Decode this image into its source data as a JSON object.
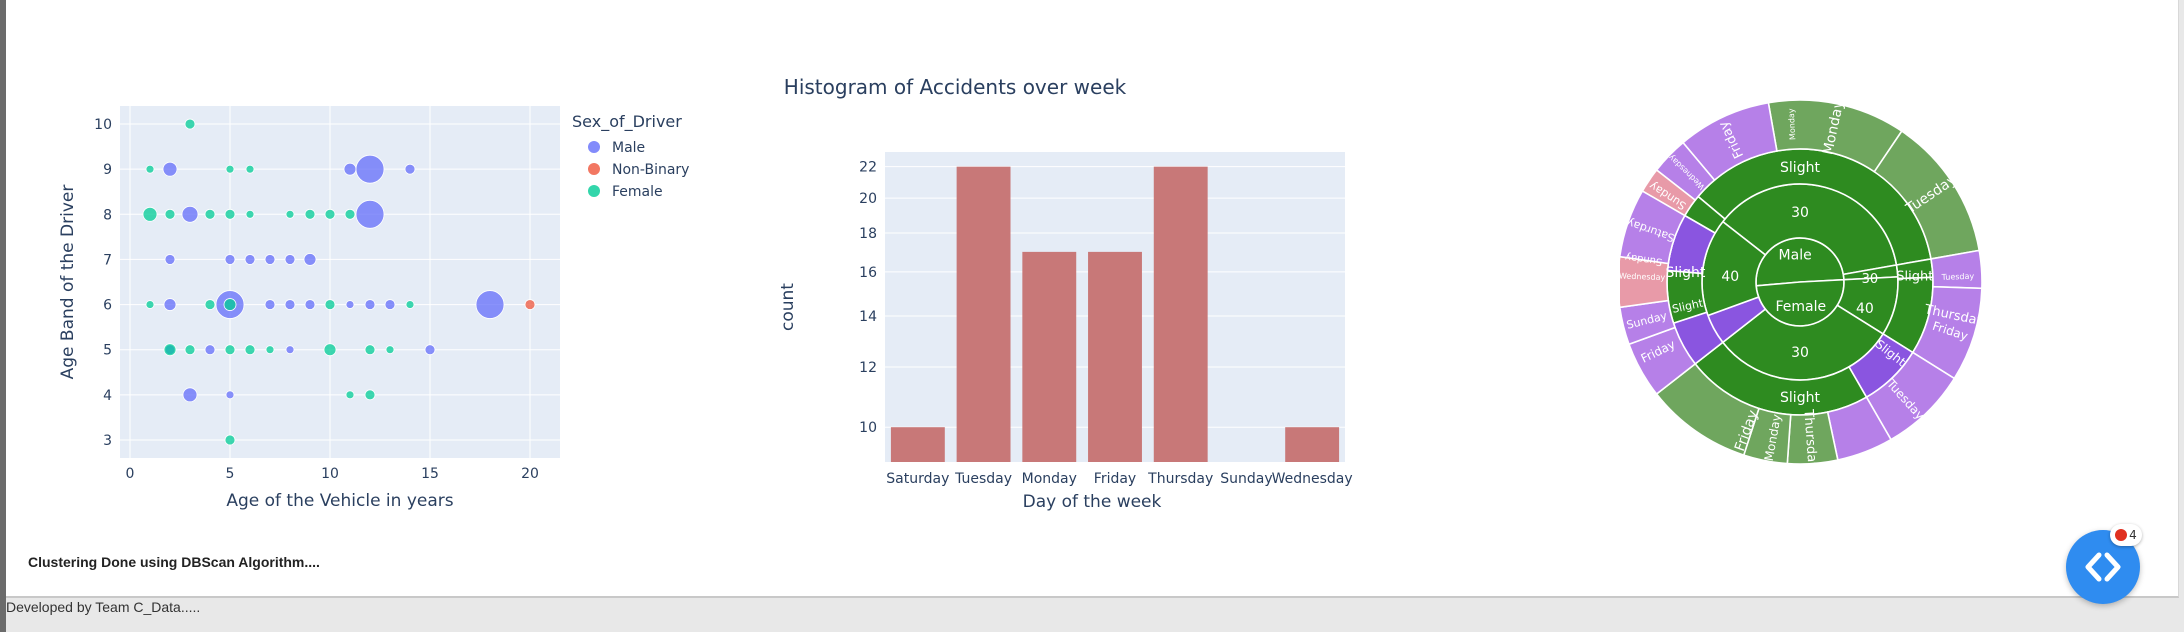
{
  "status_text": "Clustering Done using DBScan Algorithm....",
  "footer_text": "Developed by Team C_Data.....",
  "fab": {
    "badge_count": "4",
    "icon": "code-brackets-icon",
    "color": "#2f8cf0"
  },
  "chart_data": [
    {
      "type": "scatter",
      "title": "",
      "xlabel": "Age of the Vehicle in years",
      "ylabel": "Age Band of the Driver",
      "xlim": [
        -0.5,
        21.5
      ],
      "ylim": [
        2.6,
        10.4
      ],
      "x_ticks": [
        0,
        5,
        10,
        15,
        20
      ],
      "y_ticks": [
        3,
        4,
        5,
        6,
        7,
        8,
        9,
        10
      ],
      "grid": true,
      "legend": {
        "title": "Sex_of_Driver",
        "placement": "top-right-outside"
      },
      "series": [
        {
          "name": "Male",
          "color": "#636efa",
          "points": [
            [
              2,
              9,
              7
            ],
            [
              11,
              9,
              6
            ],
            [
              12,
              9,
              14
            ],
            [
              14,
              9,
              5
            ],
            [
              3,
              8,
              8
            ],
            [
              12,
              8,
              14
            ],
            [
              2,
              7,
              5
            ],
            [
              5,
              7,
              5
            ],
            [
              6,
              7,
              5
            ],
            [
              7,
              7,
              5
            ],
            [
              8,
              7,
              5
            ],
            [
              9,
              7,
              6
            ],
            [
              2,
              6,
              6
            ],
            [
              5,
              6,
              14
            ],
            [
              7,
              6,
              5
            ],
            [
              8,
              6,
              5
            ],
            [
              9,
              6,
              5
            ],
            [
              11,
              6,
              4
            ],
            [
              12,
              6,
              5
            ],
            [
              13,
              6,
              5
            ],
            [
              18,
              6,
              14
            ],
            [
              2,
              5,
              5
            ],
            [
              4,
              5,
              5
            ],
            [
              8,
              5,
              4
            ],
            [
              15,
              5,
              5
            ],
            [
              3,
              4,
              7
            ],
            [
              5,
              4,
              4
            ]
          ]
        },
        {
          "name": "Non-Binary",
          "color": "#ef553b",
          "points": [
            [
              20,
              6,
              5
            ]
          ]
        },
        {
          "name": "Female",
          "color": "#00cc96",
          "points": [
            [
              3,
              10,
              5
            ],
            [
              1,
              9,
              4
            ],
            [
              5,
              9,
              4
            ],
            [
              6,
              9,
              4
            ],
            [
              1,
              8,
              7
            ],
            [
              2,
              8,
              5
            ],
            [
              4,
              8,
              5
            ],
            [
              5,
              8,
              5
            ],
            [
              6,
              8,
              4
            ],
            [
              8,
              8,
              4
            ],
            [
              9,
              8,
              5
            ],
            [
              10,
              8,
              5
            ],
            [
              11,
              8,
              5
            ],
            [
              1,
              6,
              4
            ],
            [
              4,
              6,
              5
            ],
            [
              5,
              6,
              6
            ],
            [
              10,
              6,
              5
            ],
            [
              14,
              6,
              4
            ],
            [
              2,
              5,
              6
            ],
            [
              3,
              5,
              5
            ],
            [
              5,
              5,
              5
            ],
            [
              6,
              5,
              5
            ],
            [
              7,
              5,
              4
            ],
            [
              10,
              5,
              6
            ],
            [
              12,
              5,
              5
            ],
            [
              13,
              5,
              4
            ],
            [
              11,
              4,
              4
            ],
            [
              12,
              4,
              5
            ],
            [
              5,
              3,
              5
            ]
          ]
        }
      ]
    },
    {
      "type": "bar",
      "title": "Histogram of Accidents over week",
      "xlabel": "Day of the week",
      "ylabel": "count",
      "categories": [
        "Saturday",
        "Tuesday",
        "Monday",
        "Friday",
        "Thursday",
        "Sunday",
        "Wednesday"
      ],
      "values": [
        10,
        22,
        17,
        17,
        22,
        9,
        10
      ],
      "y_scale": "log",
      "ylim": [
        9,
        23
      ],
      "y_ticks": [
        10,
        12,
        14,
        16,
        18,
        20,
        22
      ],
      "color": "#c87878",
      "grid": true
    },
    {
      "type": "sunburst",
      "title": "",
      "colors": {
        "slight": "#2e8b20",
        "slight_outer": "#6fa65e",
        "purple": "#b680e8",
        "pink": "#e89aa8",
        "violet": "#8a55e0"
      },
      "nodes": [
        {
          "label": "Male",
          "children": [
            {
              "label": "30",
              "children": [
                {
                  "label": "Slight",
                  "children": [
                    "Friday",
                    "Monday",
                    "Tuesday",
                    "Thursday"
                  ]
                }
              ]
            },
            {
              "label": "40",
              "children": [
                {
                  "label": "Slight",
                  "children": [
                    "Saturday",
                    "Sunday",
                    "Friday"
                  ]
                }
              ]
            }
          ]
        },
        {
          "label": "Female",
          "children": [
            {
              "label": "30",
              "children": [
                {
                  "label": "Slight",
                  "children": [
                    "Thursday",
                    "Monday",
                    "Tuesday"
                  ]
                }
              ]
            },
            {
              "label": "40",
              "children": [
                {
                  "label": "Slight",
                  "children": [
                    "Friday",
                    "Sunday",
                    "Wednesday"
                  ]
                }
              ]
            }
          ]
        }
      ],
      "labels": {
        "inner": [
          "Male",
          "Female"
        ],
        "mid": [
          "30",
          "40",
          "30",
          "40",
          "30"
        ],
        "ring3": [
          "Slight",
          "Slight",
          "Slight",
          "Slight",
          "Slight",
          "Slight"
        ],
        "outer": [
          "Monday",
          "Tuesday",
          "Thursday",
          "Friday",
          "Wednesday",
          "Sunday",
          "Saturday",
          "Sunday",
          "Friday",
          "Friday",
          "Thursday",
          "Monday",
          "Tuesday",
          "Tuesday",
          "Friday",
          "Sunday",
          "Wednesday",
          "Monday"
        ]
      }
    }
  ]
}
